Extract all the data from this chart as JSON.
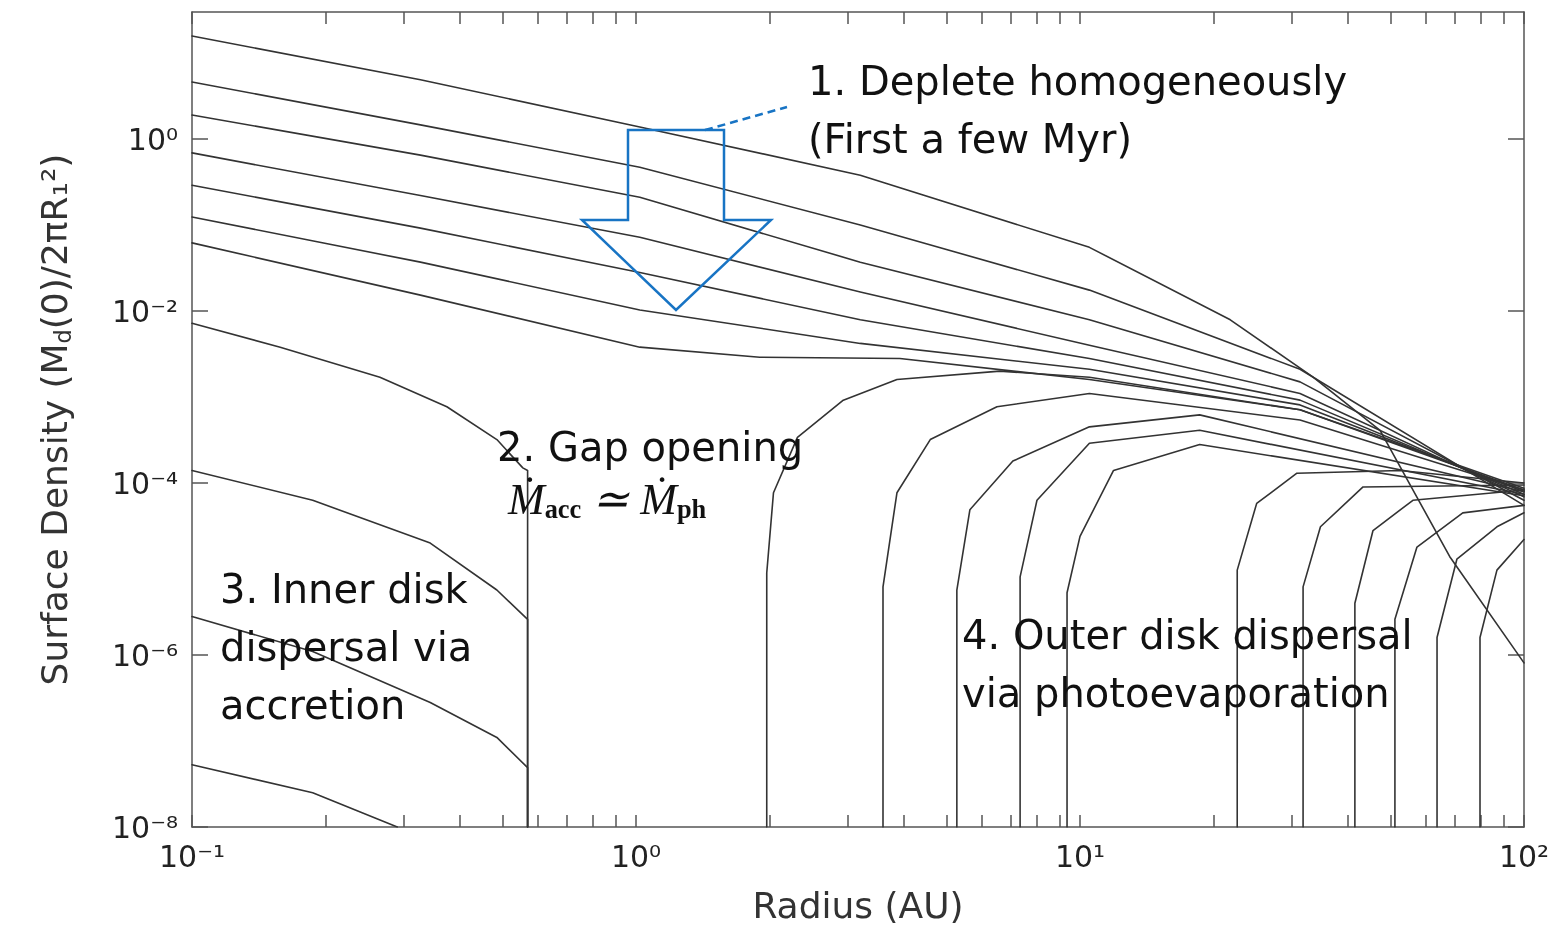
{
  "chart_data": {
    "type": "line",
    "xlabel": "Radius (AU)",
    "ylabel": "Surface Density (M$_{d}$(0)/2πR₁²)",
    "log": "xy",
    "marker": "none",
    "xlim": [
      0.1,
      100
    ],
    "ylim": [
      1e-08,
      30
    ],
    "xticks": [
      {
        "value": 0.1,
        "label": "10⁻¹"
      },
      {
        "value": 0.2,
        "label": null
      },
      {
        "value": 0.3,
        "label": null
      },
      {
        "value": 0.4,
        "label": null
      },
      {
        "value": 0.5,
        "label": null
      },
      {
        "value": 0.6,
        "label": null
      },
      {
        "value": 0.7,
        "label": null
      },
      {
        "value": 0.8,
        "label": null
      },
      {
        "value": 0.9,
        "label": null
      },
      {
        "value": 1,
        "label": "10⁰"
      },
      {
        "value": 2,
        "label": null
      },
      {
        "value": 3,
        "label": null
      },
      {
        "value": 4,
        "label": null
      },
      {
        "value": 5,
        "label": null
      },
      {
        "value": 6,
        "label": null
      },
      {
        "value": 7,
        "label": null
      },
      {
        "value": 8,
        "label": null
      },
      {
        "value": 9,
        "label": null
      },
      {
        "value": 10,
        "label": "10¹"
      },
      {
        "value": 20,
        "label": null
      },
      {
        "value": 30,
        "label": null
      },
      {
        "value": 40,
        "label": null
      },
      {
        "value": 50,
        "label": null
      },
      {
        "value": 60,
        "label": null
      },
      {
        "value": 70,
        "label": null
      },
      {
        "value": 80,
        "label": null
      },
      {
        "value": 90,
        "label": null
      },
      {
        "value": 100,
        "label": "10²"
      }
    ],
    "yticks": [
      {
        "value": 1e-08,
        "label": "10⁻⁸"
      },
      {
        "value": 1e-06,
        "label": "10⁻⁶"
      },
      {
        "value": 0.0001,
        "label": "10⁻⁴"
      },
      {
        "value": 0.01,
        "label": "10⁻²"
      },
      {
        "value": 1,
        "label": "10⁰"
      }
    ],
    "series": [
      {
        "color": "#333333",
        "x": [
          0.1,
          0.327,
          1.02,
          3.2,
          10.5,
          21.8,
          33.5,
          47.4,
          68,
          100
        ],
        "values": [
          15.8,
          4.9,
          1.38,
          0.38,
          0.055,
          0.0079,
          0.0017,
          0.00041,
          1.4e-05,
          8.1e-07
        ]
      },
      {
        "color": "#333333",
        "x": [
          0.1,
          0.327,
          1.02,
          3.2,
          10.5,
          31.3,
          100
        ],
        "values": [
          4.6,
          1.46,
          0.47,
          0.1,
          0.0175,
          0.0021,
          5.5e-05
        ]
      },
      {
        "color": "#333333",
        "x": [
          0.1,
          0.327,
          1.02,
          3.2,
          10.5,
          31.3,
          100
        ],
        "values": [
          1.9,
          0.65,
          0.21,
          0.037,
          0.0079,
          0.0015,
          6.3e-05
        ]
      },
      {
        "color": "#333333",
        "x": [
          0.1,
          0.327,
          1.02,
          3.2,
          10.5,
          31.3,
          100
        ],
        "values": [
          0.69,
          0.22,
          0.072,
          0.0166,
          0.004,
          0.0011,
          6.9e-05
        ]
      },
      {
        "color": "#333333",
        "x": [
          0.1,
          0.327,
          1.02,
          3.2,
          10.5,
          31.3,
          100
        ],
        "values": [
          0.29,
          0.092,
          0.028,
          0.0079,
          0.0028,
          0.00092,
          7.4e-05
        ]
      },
      {
        "color": "#333333",
        "x": [
          0.1,
          0.327,
          1.02,
          3.2,
          10.5,
          31.3,
          100
        ],
        "values": [
          0.124,
          0.037,
          0.0103,
          0.0042,
          0.0021,
          0.00081,
          7.9e-05
        ]
      },
      {
        "color": "#333333",
        "x": [
          0.1,
          0.327,
          1.02,
          1.9,
          3.93,
          10.5,
          31.3,
          100
        ],
        "values": [
          0.062,
          0.0153,
          0.0038,
          0.0029,
          0.0028,
          0.0016,
          0.00071,
          8.3e-05
        ]
      },
      {
        "color": "#333333",
        "x": [
          0.1,
          0.158,
          0.265,
          0.375,
          0.486,
          0.556,
          0.57,
          0.57
        ],
        "values": [
          0.0072,
          0.0038,
          0.0017,
          0.00077,
          0.00032,
          0.00015,
          0.00014,
          1e-08
        ]
      },
      {
        "color": "#333333",
        "x": [
          0.1,
          0.187,
          0.344,
          0.486,
          0.57,
          0.57
        ],
        "values": [
          0.00014,
          6.3e-05,
          2e-05,
          5.7e-06,
          2.6e-06,
          1e-08
        ]
      },
      {
        "color": "#333333",
        "x": [
          0.1,
          0.187,
          0.344,
          0.486,
          0.57,
          0.57
        ],
        "values": [
          2.8e-06,
          1.1e-06,
          2.8e-07,
          1.1e-07,
          4.9e-08,
          1e-08
        ]
      },
      {
        "color": "#333333",
        "x": [
          0.1,
          0.187,
          0.29
        ],
        "values": [
          5.3e-08,
          2.5e-08,
          1e-08
        ]
      },
      {
        "color": "#333333",
        "x": [
          1.97,
          1.97,
          2.04,
          2.31,
          2.93,
          3.87,
          6.6,
          10.5,
          31.3,
          100
        ],
        "values": [
          1e-08,
          9e-06,
          7.7e-05,
          0.00034,
          0.00092,
          0.0016,
          0.002,
          0.0017,
          0.00071,
          8.7e-05
        ]
      },
      {
        "color": "#333333",
        "x": [
          3.6,
          3.6,
          3.87,
          4.6,
          6.5,
          10.5,
          31.3,
          100
        ],
        "values": [
          1e-08,
          6.2e-06,
          7.7e-05,
          0.00032,
          0.00077,
          0.0011,
          0.00054,
          8.3e-05
        ]
      },
      {
        "color": "#333333",
        "x": [
          5.28,
          5.28,
          5.65,
          7.06,
          10.5,
          18.6,
          100
        ],
        "values": [
          1e-08,
          5.7e-06,
          4.9e-05,
          0.00018,
          0.00045,
          0.00062,
          7.9e-05
        ]
      },
      {
        "color": "#333333",
        "x": [
          7.33,
          7.33,
          8.0,
          10.5,
          18.6,
          100
        ],
        "values": [
          1e-08,
          8.1e-06,
          6.3e-05,
          0.00029,
          0.00041,
          7.4e-05
        ]
      },
      {
        "color": "#333333",
        "x": [
          9.35,
          9.35,
          10,
          11.9,
          18.6,
          100
        ],
        "values": [
          1e-08,
          5.3e-06,
          2.4e-05,
          0.00014,
          0.00028,
          7.1e-05
        ]
      },
      {
        "color": "#333333",
        "x": [
          22.6,
          22.6,
          25,
          30.8,
          52.6,
          100
        ],
        "values": [
          1e-08,
          9.7e-06,
          5.8e-05,
          0.00013,
          0.00014,
          0.0001
        ]
      },
      {
        "color": "#333333",
        "x": [
          31.8,
          31.8,
          34.8,
          43.4,
          100
        ],
        "values": [
          1e-08,
          6.2e-06,
          3.1e-05,
          9e-05,
          9.5e-05
        ]
      },
      {
        "color": "#333333",
        "x": [
          41.6,
          41.6,
          45.7,
          56.2,
          100
        ],
        "values": [
          1e-08,
          4e-06,
          2.8e-05,
          6.3e-05,
          8.3e-05
        ]
      },
      {
        "color": "#333333",
        "x": [
          51.2,
          51.2,
          57.4,
          72.8,
          100
        ],
        "values": [
          1e-08,
          2.6e-06,
          1.8e-05,
          4.5e-05,
          5.5e-05
        ]
      },
      {
        "color": "#333333",
        "x": [
          63.7,
          63.7,
          70.6,
          86.9,
          100
        ],
        "values": [
          1e-08,
          1.6e-06,
          1.3e-05,
          3.1e-05,
          4.5e-05
        ]
      },
      {
        "color": "#333333",
        "x": [
          79.6,
          79.6,
          86.9,
          100
        ],
        "values": [
          1e-08,
          1.6e-06,
          9.7e-06,
          2.2e-05
        ]
      }
    ],
    "annotations": [
      "1. Deplete homogeneously\n(First a few Myr)",
      "2. Gap opening",
      "Ṁ$_{acc}$ ≃ Ṁ$_{ph}$",
      "3. Inner disk\ndispersal via\naccretion",
      "4. Outer disk dispersal\nvia photoevaporation"
    ]
  }
}
